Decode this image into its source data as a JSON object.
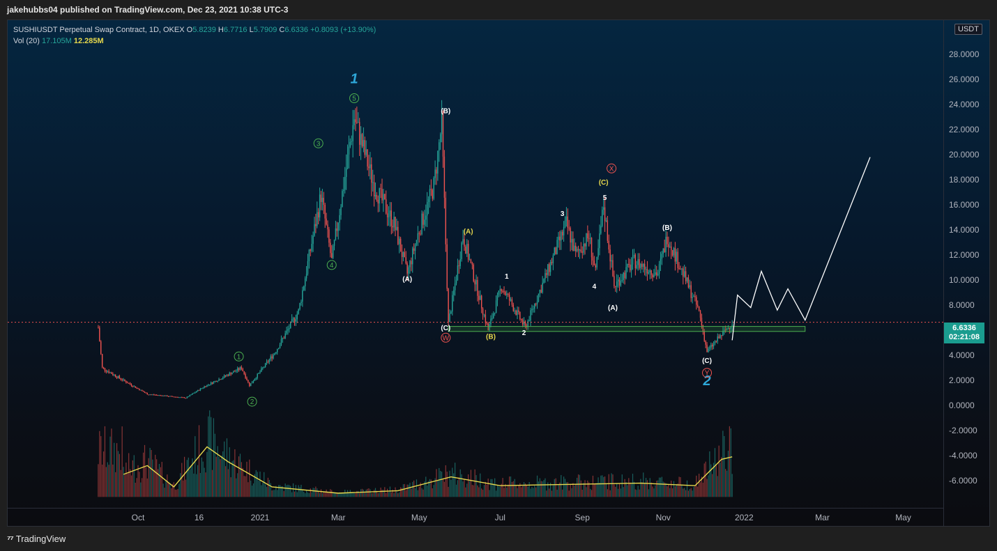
{
  "header": {
    "publisher_line": "jakehubbs04 published on TradingView.com, Dec 23, 2021 10:38 UTC-3"
  },
  "legend": {
    "symbol": "SUSHIUSDT Perpetual Swap Contract, 1D, OKEX",
    "o_label": "O",
    "o_value": "5.8239",
    "h_label": "H",
    "h_value": "6.7716",
    "l_label": "L",
    "l_value": "5.7909",
    "c_label": "C",
    "c_value": "6.6336",
    "change": "+0.8093 (+13.90%)",
    "vol_label": "Vol (20)",
    "vol_value": "17.105M",
    "vol_ma_value": "12.285M"
  },
  "currency_button": "USDT",
  "price_tag": {
    "price": "6.6336",
    "countdown": "02:21:08"
  },
  "footer": {
    "logo_icon": "tradingview-logo-icon",
    "brand": "TradingView"
  },
  "colors": {
    "up": "#26a69a",
    "down": "#ef5350",
    "vol_ma": "#e6d84d",
    "projection": "#ffffff",
    "zone": "#2e7d32"
  },
  "chart_data": {
    "type": "candlestick",
    "ylim": [
      -7.2,
      31
    ],
    "y_ticks": [
      "28.0000",
      "26.0000",
      "24.0000",
      "22.0000",
      "20.0000",
      "18.0000",
      "16.0000",
      "14.0000",
      "12.0000",
      "10.0000",
      "8.0000",
      "6.0000",
      "4.0000",
      "2.0000",
      "0.0000",
      "-2.0000",
      "-4.0000",
      "-6.0000"
    ],
    "x_ticks": [
      {
        "label": "Oct",
        "date": "2020-10-01"
      },
      {
        "label": "16",
        "date": "2020-11-16"
      },
      {
        "label": "2021",
        "date": "2021-01-01"
      },
      {
        "label": "Mar",
        "date": "2021-03-01"
      },
      {
        "label": "May",
        "date": "2021-05-01"
      },
      {
        "label": "Jul",
        "date": "2021-07-01"
      },
      {
        "label": "Sep",
        "date": "2021-09-01"
      },
      {
        "label": "Nov",
        "date": "2021-11-01"
      },
      {
        "label": "2022",
        "date": "2022-01-01"
      },
      {
        "label": "Mar",
        "date": "2022-03-01"
      },
      {
        "label": "May",
        "date": "2022-05-01"
      }
    ],
    "price_anchors": [
      {
        "date": "2020-09-01",
        "price": 6.2
      },
      {
        "date": "2020-09-04",
        "price": 3.0
      },
      {
        "date": "2020-09-15",
        "price": 2.3
      },
      {
        "date": "2020-10-08",
        "price": 0.9
      },
      {
        "date": "2020-11-06",
        "price": 0.6
      },
      {
        "date": "2020-11-20",
        "price": 1.5
      },
      {
        "date": "2020-12-18",
        "price": 3.0
      },
      {
        "date": "2020-12-24",
        "price": 1.6
      },
      {
        "date": "2021-01-12",
        "price": 4.2
      },
      {
        "date": "2021-01-30",
        "price": 7.5
      },
      {
        "date": "2021-02-16",
        "price": 16.8
      },
      {
        "date": "2021-02-24",
        "price": 11.5
      },
      {
        "date": "2021-03-13",
        "price": 23.0
      },
      {
        "date": "2021-03-28",
        "price": 17.5
      },
      {
        "date": "2021-04-12",
        "price": 14.5
      },
      {
        "date": "2021-04-22",
        "price": 10.5
      },
      {
        "date": "2021-05-01",
        "price": 14.0
      },
      {
        "date": "2021-05-12",
        "price": 17.5
      },
      {
        "date": "2021-05-18",
        "price": 22.5
      },
      {
        "date": "2021-05-23",
        "price": 6.5
      },
      {
        "date": "2021-06-03",
        "price": 13.5
      },
      {
        "date": "2021-06-22",
        "price": 6.0
      },
      {
        "date": "2021-07-02",
        "price": 9.5
      },
      {
        "date": "2021-07-20",
        "price": 6.2
      },
      {
        "date": "2021-08-20",
        "price": 14.5
      },
      {
        "date": "2021-08-27",
        "price": 12.0
      },
      {
        "date": "2021-09-06",
        "price": 13.5
      },
      {
        "date": "2021-09-11",
        "price": 10.5
      },
      {
        "date": "2021-09-17",
        "price": 16.0
      },
      {
        "date": "2021-09-25",
        "price": 9.5
      },
      {
        "date": "2021-10-10",
        "price": 11.5
      },
      {
        "date": "2021-10-28",
        "price": 10.5
      },
      {
        "date": "2021-11-04",
        "price": 13.5
      },
      {
        "date": "2021-11-28",
        "price": 7.5
      },
      {
        "date": "2021-12-04",
        "price": 4.3
      },
      {
        "date": "2021-12-23",
        "price": 6.6
      }
    ],
    "volume_ma_anchors": [
      {
        "date": "2020-09-20",
        "value": -5.5
      },
      {
        "date": "2020-10-08",
        "value": -4.8
      },
      {
        "date": "2020-10-28",
        "value": -6.5
      },
      {
        "date": "2020-11-22",
        "value": -3.3
      },
      {
        "date": "2020-12-08",
        "value": -4.5
      },
      {
        "date": "2021-01-10",
        "value": -6.5
      },
      {
        "date": "2021-03-01",
        "value": -7.0
      },
      {
        "date": "2021-04-15",
        "value": -6.8
      },
      {
        "date": "2021-05-25",
        "value": -5.7
      },
      {
        "date": "2021-07-01",
        "value": -6.4
      },
      {
        "date": "2021-08-20",
        "value": -6.3
      },
      {
        "date": "2021-10-15",
        "value": -6.2
      },
      {
        "date": "2021-11-25",
        "value": -6.4
      },
      {
        "date": "2021-12-15",
        "value": -4.3
      },
      {
        "date": "2021-12-23",
        "value": -4.1
      }
    ],
    "projection_path": [
      {
        "date": "2021-12-23",
        "price": 5.2
      },
      {
        "date": "2021-12-27",
        "price": 8.8
      },
      {
        "date": "2022-01-06",
        "price": 7.8
      },
      {
        "date": "2022-01-14",
        "price": 10.7
      },
      {
        "date": "2022-01-26",
        "price": 7.6
      },
      {
        "date": "2022-02-03",
        "price": 9.3
      },
      {
        "date": "2022-02-16",
        "price": 6.8
      },
      {
        "date": "2022-04-06",
        "price": 19.8
      }
    ],
    "support_zone": {
      "from": "2021-05-23",
      "to": "2022-02-16",
      "low": 5.9,
      "high": 6.3
    },
    "last_price_line": 6.6336,
    "wave_labels": [
      {
        "text": "1",
        "date": "2021-03-13",
        "price": 25.7,
        "color": "#2ea8d9",
        "kind": "big"
      },
      {
        "text": "2",
        "date": "2021-12-04",
        "price": 1.6,
        "color": "#2ea8d9",
        "kind": "big"
      },
      {
        "text": "5",
        "date": "2021-03-13",
        "price": 24.5,
        "color": "#4caf50",
        "kind": "circle"
      },
      {
        "text": "3",
        "date": "2021-02-14",
        "price": 20.9,
        "color": "#4caf50",
        "kind": "circle"
      },
      {
        "text": "4",
        "date": "2021-02-24",
        "price": 11.2,
        "color": "#4caf50",
        "kind": "circle"
      },
      {
        "text": "1",
        "date": "2020-12-16",
        "price": 3.9,
        "color": "#4caf50",
        "kind": "circle"
      },
      {
        "text": "2",
        "date": "2020-12-26",
        "price": 0.3,
        "color": "#4caf50",
        "kind": "circle"
      },
      {
        "text": "W",
        "date": "2021-05-21",
        "price": 5.4,
        "color": "#ef5350",
        "kind": "circle"
      },
      {
        "text": "X",
        "date": "2021-09-23",
        "price": 18.9,
        "color": "#ef5350",
        "kind": "circle"
      },
      {
        "text": "Y",
        "date": "2021-12-04",
        "price": 2.6,
        "color": "#ef5350",
        "kind": "circle"
      },
      {
        "text": "(B)",
        "date": "2021-05-21",
        "price": 23.3,
        "color": "#ffffff",
        "kind": "text"
      },
      {
        "text": "(A)",
        "date": "2021-04-22",
        "price": 9.9,
        "color": "#ffffff",
        "kind": "text"
      },
      {
        "text": "(C)",
        "date": "2021-05-21",
        "price": 6.0,
        "color": "#ffffff",
        "kind": "text"
      },
      {
        "text": "(A)",
        "date": "2021-06-07",
        "price": 13.7,
        "color": "#e6d84d",
        "kind": "text"
      },
      {
        "text": "(B)",
        "date": "2021-06-24",
        "price": 5.3,
        "color": "#e6d84d",
        "kind": "text"
      },
      {
        "text": "1",
        "date": "2021-07-06",
        "price": 10.1,
        "color": "#ffffff",
        "kind": "text"
      },
      {
        "text": "2",
        "date": "2021-07-19",
        "price": 5.6,
        "color": "#ffffff",
        "kind": "text"
      },
      {
        "text": "3",
        "date": "2021-08-17",
        "price": 15.1,
        "color": "#ffffff",
        "kind": "text"
      },
      {
        "text": "4",
        "date": "2021-09-10",
        "price": 9.3,
        "color": "#ffffff",
        "kind": "text"
      },
      {
        "text": "(C)",
        "date": "2021-09-17",
        "price": 17.6,
        "color": "#e6d84d",
        "kind": "text"
      },
      {
        "text": "5",
        "date": "2021-09-18",
        "price": 16.4,
        "color": "#ffffff",
        "kind": "text"
      },
      {
        "text": "(A)",
        "date": "2021-09-24",
        "price": 7.6,
        "color": "#ffffff",
        "kind": "text"
      },
      {
        "text": "(B)",
        "date": "2021-11-04",
        "price": 14.0,
        "color": "#ffffff",
        "kind": "text"
      },
      {
        "text": "(C)",
        "date": "2021-12-04",
        "price": 3.4,
        "color": "#ffffff",
        "kind": "text"
      }
    ]
  }
}
